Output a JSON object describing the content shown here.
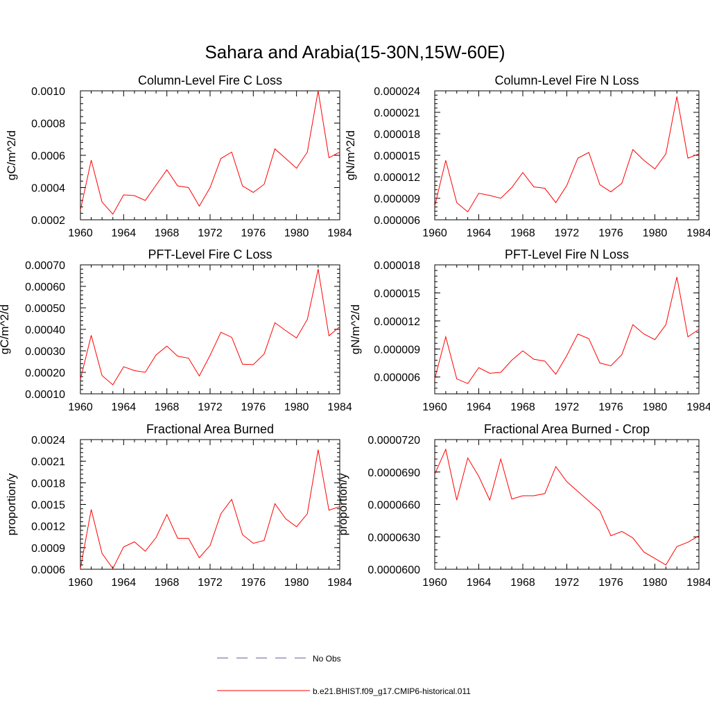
{
  "figure_title": "Sahara and Arabia(15-30N,15W-60E)",
  "colors": {
    "model": "#ff0000",
    "obs": "#5a5a9a",
    "axis": "#000000"
  },
  "legend": [
    {
      "label": "No Obs",
      "style": "dashed",
      "color": "#5a5a9a"
    },
    {
      "label": "b.e21.BHIST.f09_g17.CMIP6-historical.011",
      "style": "solid",
      "color": "#ff0000"
    }
  ],
  "chart_data": [
    {
      "type": "line",
      "title": "Column-Level Fire C Loss",
      "ylabel": "gC/m^2/d",
      "xlim": [
        1960,
        1984
      ],
      "ylim": [
        0.0002,
        0.001
      ],
      "x_ticks": [
        "1960",
        "1964",
        "1968",
        "1972",
        "1976",
        "1980",
        "1984"
      ],
      "y_ticks": [
        {
          "v": 0.0002,
          "label": "0.0002"
        },
        {
          "v": 0.0004,
          "label": "0.0004"
        },
        {
          "v": 0.0006,
          "label": "0.0006"
        },
        {
          "v": 0.0008,
          "label": "0.0008"
        },
        {
          "v": 0.001,
          "label": "0.0010"
        }
      ],
      "x": [
        1960,
        1961,
        1962,
        1963,
        1964,
        1965,
        1966,
        1967,
        1968,
        1969,
        1970,
        1971,
        1972,
        1973,
        1974,
        1975,
        1976,
        1977,
        1978,
        1979,
        1980,
        1981,
        1982,
        1983,
        1984
      ],
      "series": [
        {
          "values": [
            0.00026,
            0.00057,
            0.00031,
            0.000235,
            0.000355,
            0.00035,
            0.00032,
            0.000415,
            0.00051,
            0.00041,
            0.0004,
            0.000285,
            0.0004,
            0.00058,
            0.00062,
            0.00041,
            0.00037,
            0.00042,
            0.00064,
            0.00058,
            0.00052,
            0.00062,
            0.001,
            0.000585,
            0.00062
          ]
        }
      ]
    },
    {
      "type": "line",
      "title": "Column-Level Fire N Loss",
      "ylabel": "gN/m^2/d",
      "xlim": [
        1960,
        1984
      ],
      "ylim": [
        6e-06,
        2.4e-05
      ],
      "x_ticks": [
        "1960",
        "1964",
        "1968",
        "1972",
        "1976",
        "1980",
        "1984"
      ],
      "y_ticks": [
        {
          "v": 6e-06,
          "label": "0.000006"
        },
        {
          "v": 9e-06,
          "label": "0.000009"
        },
        {
          "v": 1.2e-05,
          "label": "0.000012"
        },
        {
          "v": 1.5e-05,
          "label": "0.000015"
        },
        {
          "v": 1.8e-05,
          "label": "0.000018"
        },
        {
          "v": 2.1e-05,
          "label": "0.000021"
        },
        {
          "v": 2.4e-05,
          "label": "0.000024"
        }
      ],
      "x": [
        1960,
        1961,
        1962,
        1963,
        1964,
        1965,
        1966,
        1967,
        1968,
        1969,
        1970,
        1971,
        1972,
        1973,
        1974,
        1975,
        1976,
        1977,
        1978,
        1979,
        1980,
        1981,
        1982,
        1983,
        1984
      ],
      "series": [
        {
          "values": [
            7.9e-06,
            1.43e-05,
            8.4e-06,
            7.1e-06,
            9.7e-06,
            9.4e-06,
            9e-06,
            1.05e-05,
            1.26e-05,
            1.06e-05,
            1.04e-05,
            8.4e-06,
            1.08e-05,
            1.46e-05,
            1.54e-05,
            1.09e-05,
            9.9e-06,
            1.11e-05,
            1.58e-05,
            1.43e-05,
            1.31e-05,
            1.52e-05,
            2.32e-05,
            1.46e-05,
            1.52e-05
          ]
        }
      ]
    },
    {
      "type": "line",
      "title": "PFT-Level Fire C Loss",
      "ylabel": "gC/m^2/d",
      "xlim": [
        1960,
        1984
      ],
      "ylim": [
        0.0001,
        0.0007
      ],
      "x_ticks": [
        "1960",
        "1964",
        "1968",
        "1972",
        "1976",
        "1980",
        "1984"
      ],
      "y_ticks": [
        {
          "v": 0.0001,
          "label": "0.00010"
        },
        {
          "v": 0.0002,
          "label": "0.00020"
        },
        {
          "v": 0.0003,
          "label": "0.00030"
        },
        {
          "v": 0.0004,
          "label": "0.00040"
        },
        {
          "v": 0.0005,
          "label": "0.00050"
        },
        {
          "v": 0.0006,
          "label": "0.00060"
        },
        {
          "v": 0.0007,
          "label": "0.00070"
        }
      ],
      "x": [
        1960,
        1961,
        1962,
        1963,
        1964,
        1965,
        1966,
        1967,
        1968,
        1969,
        1970,
        1971,
        1972,
        1973,
        1974,
        1975,
        1976,
        1977,
        1978,
        1979,
        1980,
        1981,
        1982,
        1983,
        1984
      ],
      "series": [
        {
          "values": [
            0.000168,
            0.000372,
            0.000185,
            0.000142,
            0.000226,
            0.000208,
            0.0002,
            0.000281,
            0.000322,
            0.000275,
            0.000266,
            0.000183,
            0.000279,
            0.000386,
            0.000363,
            0.000238,
            0.000236,
            0.000285,
            0.000431,
            0.000394,
            0.00036,
            0.000446,
            0.00068,
            0.00037,
            0.000412
          ]
        }
      ]
    },
    {
      "type": "line",
      "title": "PFT-Level Fire N Loss",
      "ylabel": "gN/m^2/d",
      "xlim": [
        1960,
        1984
      ],
      "ylim": [
        4.2e-06,
        1.8e-05
      ],
      "x_ticks": [
        "1960",
        "1964",
        "1968",
        "1972",
        "1976",
        "1980",
        "1984"
      ],
      "y_ticks": [
        {
          "v": 6e-06,
          "label": "0.000006"
        },
        {
          "v": 9e-06,
          "label": "0.000009"
        },
        {
          "v": 1.2e-05,
          "label": "0.000012"
        },
        {
          "v": 1.5e-05,
          "label": "0.000015"
        },
        {
          "v": 1.8e-05,
          "label": "0.000018"
        }
      ],
      "x": [
        1960,
        1961,
        1962,
        1963,
        1964,
        1965,
        1966,
        1967,
        1968,
        1969,
        1970,
        1971,
        1972,
        1973,
        1974,
        1975,
        1976,
        1977,
        1978,
        1979,
        1980,
        1981,
        1982,
        1983,
        1984
      ],
      "series": [
        {
          "values": [
            5.8e-06,
            1.03e-05,
            5.8e-06,
            5.3e-06,
            7e-06,
            6.4e-06,
            6.5e-06,
            7.8e-06,
            8.8e-06,
            7.9e-06,
            7.7e-06,
            6.3e-06,
            8.3e-06,
            1.06e-05,
            1.01e-05,
            7.5e-06,
            7.2e-06,
            8.4e-06,
            1.16e-05,
            1.06e-05,
            1e-05,
            1.16e-05,
            1.67e-05,
            1.03e-05,
            1.11e-05
          ]
        }
      ]
    },
    {
      "type": "line",
      "title": "Fractional Area Burned",
      "ylabel": "proportion/y",
      "xlim": [
        1960,
        1984
      ],
      "ylim": [
        0.0006,
        0.0024
      ],
      "x_ticks": [
        "1960",
        "1964",
        "1968",
        "1972",
        "1976",
        "1980",
        "1984"
      ],
      "y_ticks": [
        {
          "v": 0.0006,
          "label": "0.0006"
        },
        {
          "v": 0.0009,
          "label": "0.0009"
        },
        {
          "v": 0.0012,
          "label": "0.0012"
        },
        {
          "v": 0.0015,
          "label": "0.0015"
        },
        {
          "v": 0.0018,
          "label": "0.0018"
        },
        {
          "v": 0.0021,
          "label": "0.0021"
        },
        {
          "v": 0.0024,
          "label": "0.0024"
        }
      ],
      "x": [
        1960,
        1961,
        1962,
        1963,
        1964,
        1965,
        1966,
        1967,
        1968,
        1969,
        1970,
        1971,
        1972,
        1973,
        1974,
        1975,
        1976,
        1977,
        1978,
        1979,
        1980,
        1981,
        1982,
        1983,
        1984
      ],
      "series": [
        {
          "values": [
            0.00061,
            0.00143,
            0.00082,
            0.00061,
            0.00091,
            0.00098,
            0.00085,
            0.00104,
            0.00136,
            0.00103,
            0.00103,
            0.00076,
            0.00093,
            0.00137,
            0.00157,
            0.00108,
            0.00096,
            0.001,
            0.00151,
            0.0013,
            0.00119,
            0.00137,
            0.00226,
            0.00142,
            0.00147
          ]
        }
      ]
    },
    {
      "type": "line",
      "title": "Fractional Area Burned - Crop",
      "ylabel": "proportion/y",
      "xlim": [
        1960,
        1984
      ],
      "ylim": [
        6e-05,
        7.2e-05
      ],
      "x_ticks": [
        "1960",
        "1964",
        "1968",
        "1972",
        "1976",
        "1980",
        "1984"
      ],
      "y_ticks": [
        {
          "v": 6e-05,
          "label": "0.0000600"
        },
        {
          "v": 6.3e-05,
          "label": "0.0000630"
        },
        {
          "v": 6.6e-05,
          "label": "0.0000660"
        },
        {
          "v": 6.9e-05,
          "label": "0.0000690"
        },
        {
          "v": 7.2e-05,
          "label": "0.0000720"
        }
      ],
      "x": [
        1960,
        1961,
        1962,
        1963,
        1964,
        1965,
        1966,
        1967,
        1968,
        1969,
        1970,
        1971,
        1972,
        1973,
        1974,
        1975,
        1976,
        1977,
        1978,
        1979,
        1980,
        1981,
        1982,
        1983,
        1984
      ],
      "series": [
        {
          "values": [
            6.88e-05,
            7.11e-05,
            6.64e-05,
            7.03e-05,
            6.86e-05,
            6.64e-05,
            7.02e-05,
            6.65e-05,
            6.68e-05,
            6.68e-05,
            6.7e-05,
            6.95e-05,
            6.81e-05,
            6.72e-05,
            6.63e-05,
            6.54e-05,
            6.31e-05,
            6.35e-05,
            6.29e-05,
            6.16e-05,
            6.1e-05,
            6.04e-05,
            6.21e-05,
            6.25e-05,
            6.31e-05
          ]
        }
      ]
    }
  ]
}
